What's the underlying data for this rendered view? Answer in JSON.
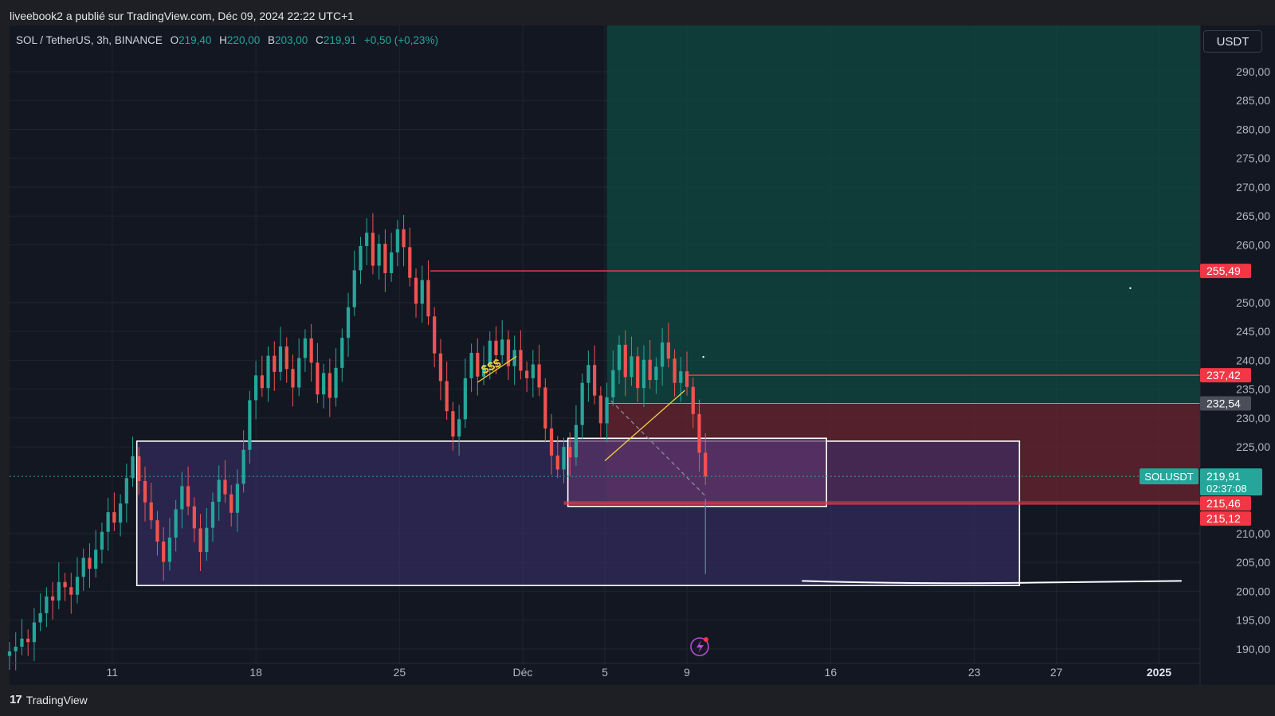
{
  "header": {
    "publisher_text": "liveebook2 a publié sur TradingView.com, Déc 09, 2024 22:22 UTC+1"
  },
  "legend": {
    "symbol": "SOL / TetherUS, 3h, BINANCE",
    "open_label": "O",
    "open": "219,40",
    "high_label": "H",
    "high": "220,00",
    "low_label": "B",
    "low": "203,00",
    "close_label": "C",
    "close": "219,91",
    "change": "+0,50 (+0,23%)"
  },
  "currency_button": "USDT",
  "footer": {
    "brand": "TradingView"
  },
  "colors": {
    "up": "#26a69a",
    "down": "#ef5350",
    "red_line": "#f23645",
    "zone_purple": "#3a2f6b",
    "zone_green": "#0f4a42",
    "zone_red": "#6a2430"
  },
  "chart_data": {
    "type": "candlestick",
    "symbol": "SOLUSDT",
    "timeframe": "3h",
    "ylim": [
      187.5,
      298
    ],
    "y_ticks": [
      {
        "v": 290,
        "label": "290,00"
      },
      {
        "v": 285,
        "label": "285,00"
      },
      {
        "v": 280,
        "label": "280,00"
      },
      {
        "v": 275,
        "label": "275,00"
      },
      {
        "v": 270,
        "label": "270,00"
      },
      {
        "v": 265,
        "label": "265,00"
      },
      {
        "v": 260,
        "label": "260,00"
      },
      {
        "v": 250,
        "label": "250,00"
      },
      {
        "v": 245,
        "label": "245,00"
      },
      {
        "v": 240,
        "label": "240,00"
      },
      {
        "v": 235,
        "label": "235,00"
      },
      {
        "v": 230,
        "label": "230,00"
      },
      {
        "v": 225,
        "label": "225,00"
      },
      {
        "v": 210,
        "label": "210,00"
      },
      {
        "v": 205,
        "label": "205,00"
      },
      {
        "v": 200,
        "label": "200,00"
      },
      {
        "v": 195,
        "label": "195,00"
      },
      {
        "v": 190,
        "label": "190,00"
      }
    ],
    "x_ticks": [
      {
        "label": "11",
        "x": 11
      },
      {
        "label": "18",
        "x": 18
      },
      {
        "label": "25",
        "x": 25
      },
      {
        "label": "Déc",
        "x": 31
      },
      {
        "label": "5",
        "x": 35
      },
      {
        "label": "9",
        "x": 39
      },
      {
        "label": "16",
        "x": 46
      },
      {
        "label": "23",
        "x": 53
      },
      {
        "label": "27",
        "x": 57
      },
      {
        "label": "2025",
        "x": 62
      }
    ],
    "xlim": [
      6,
      64
    ],
    "price_tags": [
      {
        "value": 255.49,
        "label": "255,49",
        "color": "#f23645"
      },
      {
        "value": 237.42,
        "label": "237,42",
        "color": "#f23645"
      },
      {
        "value": 232.54,
        "label": "232,54",
        "color": "#4a4e59"
      },
      {
        "value": 215.46,
        "label": "215,46",
        "color": "#f23645"
      },
      {
        "value": 215.12,
        "label": "215,12",
        "color": "#f23645"
      }
    ],
    "current_price": {
      "value": 219.91,
      "label": "219,91",
      "countdown": "02:37:08",
      "symbol_tag": "SOLUSDT"
    },
    "horizontal_lines": [
      {
        "value": 255.49,
        "from_x": 26.5
      },
      {
        "value": 237.42,
        "from_x": 39
      },
      {
        "value": 215.46,
        "from_x": 33
      },
      {
        "value": 215.12,
        "from_x": 33
      }
    ],
    "zones": [
      {
        "name": "demand-zone-large",
        "x1": 12.2,
        "x2": 55.2,
        "y1": 201,
        "y2": 226,
        "fill": "#3a2f6b",
        "outline": "#ffffff"
      },
      {
        "name": "demand-zone-small",
        "x1": 33.2,
        "x2": 45.8,
        "y1": 214.7,
        "y2": 226.5,
        "fill": "#5a3368",
        "outline": "#ffffff"
      },
      {
        "name": "target-zone",
        "x1": 35.1,
        "x2": 64,
        "y1": 232.54,
        "y2": 298,
        "fill": "#0f4a42"
      },
      {
        "name": "stop-zone",
        "x1": 35.1,
        "x2": 64,
        "y1": 215.46,
        "y2": 232.54,
        "fill": "#6a2430"
      }
    ],
    "annotations": [
      {
        "text": "$$$",
        "x": 29.1,
        "y": 237.6,
        "color": "#f5d142"
      }
    ],
    "trend_lines": [
      {
        "x1": 28.8,
        "y1": 236.2,
        "x2": 30.7,
        "y2": 240.7,
        "color": "#f5d142"
      },
      {
        "x1": 35.0,
        "y1": 222.6,
        "x2": 38.9,
        "y2": 234.8,
        "color": "#f5d142"
      },
      {
        "x1": 35.3,
        "y1": 233.0,
        "x2": 39.9,
        "y2": 216.5,
        "color": "#8c8c99",
        "dashed": true
      }
    ],
    "closes": [
      [
        6.0,
        189.6
      ],
      [
        6.3,
        190.4
      ],
      [
        6.6,
        191.8
      ],
      [
        6.9,
        191.2
      ],
      [
        7.2,
        194.6
      ],
      [
        7.5,
        196.2
      ],
      [
        7.8,
        199.1
      ],
      [
        8.1,
        198.4
      ],
      [
        8.4,
        201.6
      ],
      [
        8.7,
        200.7
      ],
      [
        9.0,
        199.4
      ],
      [
        9.3,
        202.5
      ],
      [
        9.6,
        205.8
      ],
      [
        9.9,
        203.9
      ],
      [
        10.2,
        207.2
      ],
      [
        10.5,
        210.3
      ],
      [
        10.8,
        213.7
      ],
      [
        11.1,
        211.9
      ],
      [
        11.4,
        215.2
      ],
      [
        11.7,
        219.6
      ],
      [
        12.0,
        223.4
      ],
      [
        12.3,
        219.1
      ],
      [
        12.6,
        215.4
      ],
      [
        12.9,
        212.3
      ],
      [
        13.2,
        208.6
      ],
      [
        13.5,
        205.1
      ],
      [
        13.8,
        209.3
      ],
      [
        14.1,
        214.2
      ],
      [
        14.4,
        218.2
      ],
      [
        14.7,
        214.7
      ],
      [
        15.0,
        210.9
      ],
      [
        15.3,
        206.8
      ],
      [
        15.6,
        211.0
      ],
      [
        15.9,
        215.5
      ],
      [
        16.2,
        219.3
      ],
      [
        16.5,
        216.8
      ],
      [
        16.8,
        213.6
      ],
      [
        17.1,
        218.6
      ],
      [
        17.4,
        224.5
      ],
      [
        17.7,
        233.1
      ],
      [
        18.0,
        237.4
      ],
      [
        18.3,
        235.2
      ],
      [
        18.6,
        240.8
      ],
      [
        18.9,
        238.0
      ],
      [
        19.2,
        242.4
      ],
      [
        19.5,
        238.5
      ],
      [
        19.8,
        235.3
      ],
      [
        20.1,
        240.4
      ],
      [
        20.4,
        243.8
      ],
      [
        20.7,
        239.6
      ],
      [
        21.0,
        234.1
      ],
      [
        21.3,
        237.8
      ],
      [
        21.6,
        233.5
      ],
      [
        21.9,
        238.7
      ],
      [
        22.2,
        243.9
      ],
      [
        22.5,
        249.2
      ],
      [
        22.8,
        255.6
      ],
      [
        23.1,
        259.8
      ],
      [
        23.4,
        262.1
      ],
      [
        23.7,
        256.4
      ],
      [
        24.0,
        260.2
      ],
      [
        24.3,
        255.1
      ],
      [
        24.6,
        258.7
      ],
      [
        24.9,
        262.7
      ],
      [
        25.2,
        259.6
      ],
      [
        25.5,
        254.3
      ],
      [
        25.8,
        249.8
      ],
      [
        26.1,
        253.9
      ],
      [
        26.4,
        247.6
      ],
      [
        26.7,
        241.2
      ],
      [
        27.0,
        236.4
      ],
      [
        27.3,
        231.2
      ],
      [
        27.6,
        226.8
      ],
      [
        27.9,
        229.8
      ],
      [
        28.2,
        236.9
      ],
      [
        28.5,
        241.3
      ],
      [
        28.8,
        237.2
      ],
      [
        29.1,
        239.1
      ],
      [
        29.4,
        243.4
      ],
      [
        29.7,
        240.9
      ],
      [
        30.0,
        243.6
      ],
      [
        30.3,
        239.0
      ],
      [
        30.6,
        241.8
      ],
      [
        30.9,
        238.2
      ],
      [
        31.2,
        236.9
      ],
      [
        31.5,
        239.3
      ],
      [
        31.8,
        235.3
      ],
      [
        32.1,
        228.2
      ],
      [
        32.4,
        223.5
      ],
      [
        32.7,
        221.1
      ],
      [
        33.0,
        225.0
      ],
      [
        33.3,
        223.2
      ],
      [
        33.6,
        228.8
      ],
      [
        33.9,
        236.1
      ],
      [
        34.2,
        239.2
      ],
      [
        34.5,
        233.9
      ],
      [
        34.8,
        229.1
      ],
      [
        35.1,
        233.6
      ],
      [
        35.4,
        238.3
      ],
      [
        35.7,
        242.7
      ],
      [
        36.0,
        237.1
      ],
      [
        36.3,
        240.7
      ],
      [
        36.6,
        235.2
      ],
      [
        36.9,
        240.1
      ],
      [
        37.2,
        236.6
      ],
      [
        37.5,
        238.9
      ],
      [
        37.8,
        243.1
      ],
      [
        38.1,
        240.3
      ],
      [
        38.4,
        236.1
      ],
      [
        38.7,
        238.1
      ],
      [
        39.0,
        235.4
      ],
      [
        39.3,
        230.7
      ],
      [
        39.6,
        224.0
      ],
      [
        39.9,
        219.9
      ]
    ]
  }
}
